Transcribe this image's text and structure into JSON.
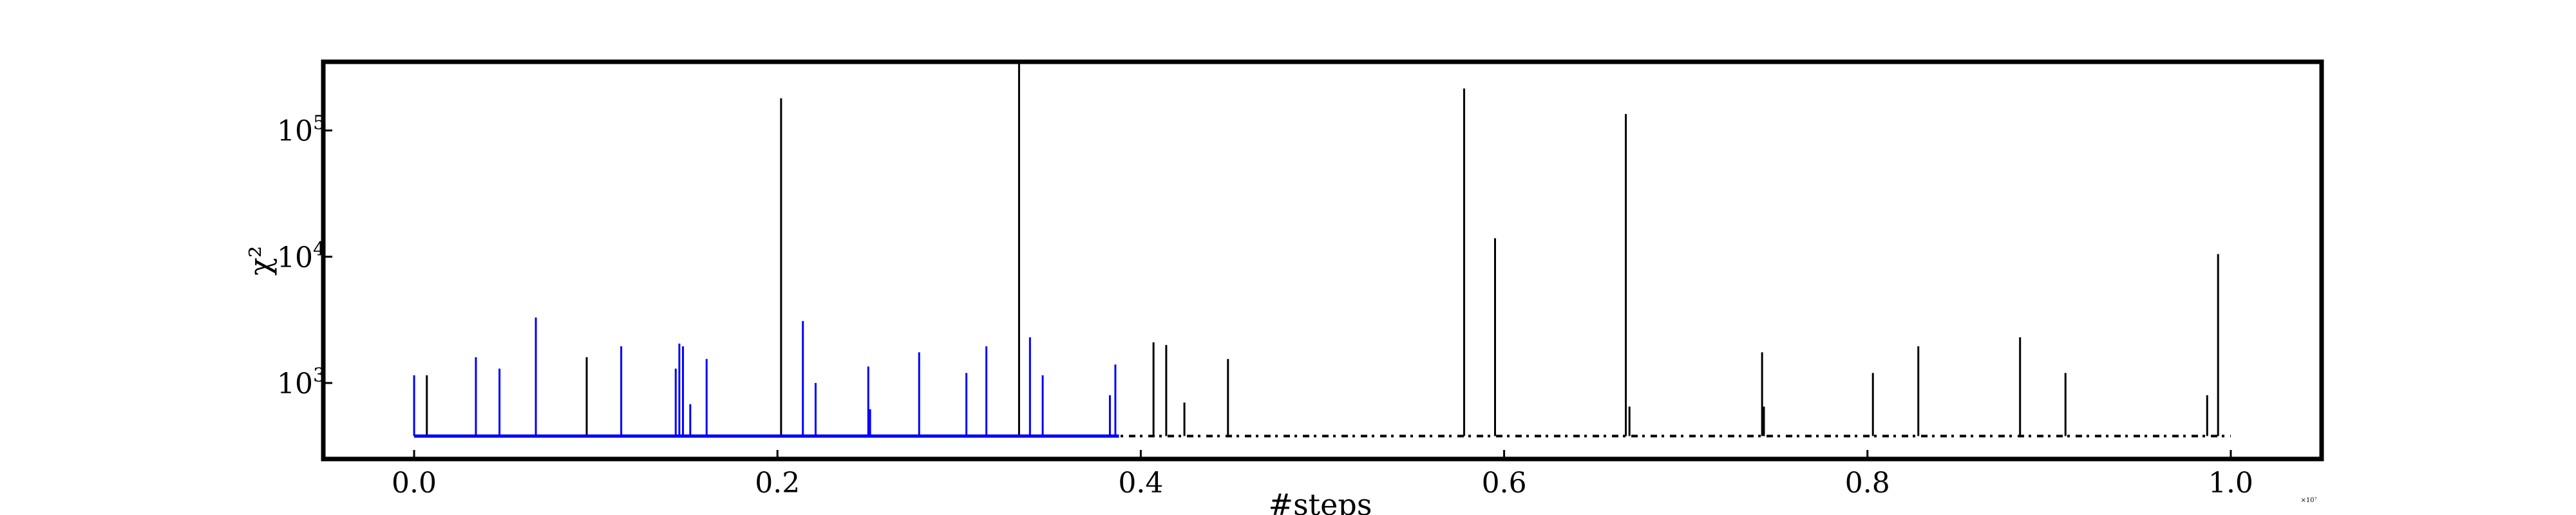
{
  "chart_data": {
    "type": "line",
    "title": "",
    "xlabel": "#steps",
    "ylabel": "χ²",
    "x_scale_note": "×10⁷",
    "xlim": [
      -0.05,
      1.05
    ],
    "ylim": [
      250,
      350000
    ],
    "yscale": "log",
    "grid": false,
    "legend": "none",
    "x_ticks": [
      {
        "value": 0.0,
        "label": "0.0"
      },
      {
        "value": 0.2,
        "label": "0.2"
      },
      {
        "value": 0.4,
        "label": "0.4"
      },
      {
        "value": 0.6,
        "label": "0.6"
      },
      {
        "value": 0.8,
        "label": "0.8"
      },
      {
        "value": 1.0,
        "label": "1.0"
      }
    ],
    "y_ticks": [
      {
        "value": 1000,
        "base": "10",
        "exp": "3"
      },
      {
        "value": 10000,
        "base": "10",
        "exp": "4"
      },
      {
        "value": 100000,
        "base": "10",
        "exp": "5"
      }
    ],
    "series": [
      {
        "color": "#0000ff",
        "style": "continuous",
        "x_range": [
          0.0,
          0.388
        ],
        "baseline": 380,
        "spikes": [
          {
            "x": 0.0,
            "y": 1150
          },
          {
            "x": 0.034,
            "y": 1600
          },
          {
            "x": 0.047,
            "y": 1300
          },
          {
            "x": 0.067,
            "y": 3300
          },
          {
            "x": 0.114,
            "y": 1950
          },
          {
            "x": 0.144,
            "y": 1300
          },
          {
            "x": 0.146,
            "y": 2050
          },
          {
            "x": 0.148,
            "y": 1950
          },
          {
            "x": 0.152,
            "y": 680
          },
          {
            "x": 0.161,
            "y": 1550
          },
          {
            "x": 0.214,
            "y": 3100
          },
          {
            "x": 0.221,
            "y": 1000
          },
          {
            "x": 0.25,
            "y": 1350
          },
          {
            "x": 0.251,
            "y": 620
          },
          {
            "x": 0.278,
            "y": 1750
          },
          {
            "x": 0.304,
            "y": 1200
          },
          {
            "x": 0.315,
            "y": 1950
          },
          {
            "x": 0.339,
            "y": 2300
          },
          {
            "x": 0.346,
            "y": 1150
          },
          {
            "x": 0.383,
            "y": 800
          },
          {
            "x": 0.386,
            "y": 1400
          }
        ]
      },
      {
        "color": "#000000",
        "style": "dashed",
        "x_range": [
          0.0,
          1.0
        ],
        "baseline": 380,
        "spikes": [
          {
            "x": 0.007,
            "y": 1150
          },
          {
            "x": 0.095,
            "y": 1600
          },
          {
            "x": 0.202,
            "y": 180000
          },
          {
            "x": 0.333,
            "y": 350000
          },
          {
            "x": 0.407,
            "y": 2100
          },
          {
            "x": 0.414,
            "y": 2000
          },
          {
            "x": 0.424,
            "y": 700
          },
          {
            "x": 0.448,
            "y": 1550
          },
          {
            "x": 0.578,
            "y": 215000
          },
          {
            "x": 0.595,
            "y": 14000
          },
          {
            "x": 0.667,
            "y": 135000
          },
          {
            "x": 0.669,
            "y": 650
          },
          {
            "x": 0.742,
            "y": 1750
          },
          {
            "x": 0.743,
            "y": 650
          },
          {
            "x": 0.803,
            "y": 1200
          },
          {
            "x": 0.828,
            "y": 1950
          },
          {
            "x": 0.884,
            "y": 2300
          },
          {
            "x": 0.909,
            "y": 1200
          },
          {
            "x": 0.987,
            "y": 800
          },
          {
            "x": 0.993,
            "y": 10500
          }
        ]
      }
    ]
  }
}
